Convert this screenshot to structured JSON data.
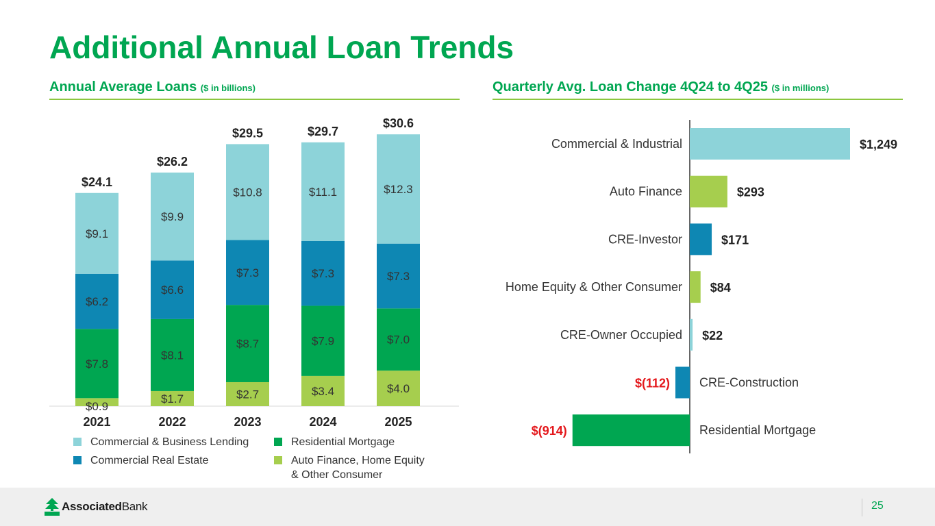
{
  "title": "Additional Annual Loan Trends",
  "left_panel": {
    "heading": "Annual Average Loans",
    "unit": "($ in billions)"
  },
  "right_panel": {
    "heading": "Quarterly Avg. Loan Change 4Q24 to 4Q25",
    "unit": "($ in millions)"
  },
  "colors": {
    "brand_green": "#00A651",
    "light_green": "#8CC63F",
    "commercial_business": "#8DD3D9",
    "commercial_real_estate": "#0E87B3",
    "residential_mortgage": "#00A651",
    "auto_consumer": "#A6CE4E",
    "negative_red": "#E4181C"
  },
  "chart_data": [
    {
      "type": "bar",
      "stacked": true,
      "title": "Annual Average Loans ($ in billions)",
      "categories": [
        "2021",
        "2022",
        "2023",
        "2024",
        "2025"
      ],
      "totals": [
        24.1,
        26.2,
        29.5,
        29.7,
        30.6
      ],
      "total_labels": [
        "$24.1",
        "$26.2",
        "$29.5",
        "$29.7",
        "$30.6"
      ],
      "series": [
        {
          "name": "Auto Finance, Home Equity & Other Consumer",
          "color_key": "auto_consumer",
          "values": [
            0.9,
            1.7,
            2.7,
            3.4,
            4.0
          ],
          "labels": [
            "$0.9",
            "$1.7",
            "$2.7",
            "$3.4",
            "$4.0"
          ]
        },
        {
          "name": "Residential Mortgage",
          "color_key": "residential_mortgage",
          "values": [
            7.8,
            8.1,
            8.7,
            7.9,
            7.0
          ],
          "labels": [
            "$7.8",
            "$8.1",
            "$8.7",
            "$7.9",
            "$7.0"
          ]
        },
        {
          "name": "Commercial Real Estate",
          "color_key": "commercial_real_estate",
          "values": [
            6.2,
            6.6,
            7.3,
            7.3,
            7.3
          ],
          "labels": [
            "$6.2",
            "$6.6",
            "$7.3",
            "$7.3",
            "$7.3"
          ]
        },
        {
          "name": "Commercial & Business Lending",
          "color_key": "commercial_business",
          "values": [
            9.1,
            9.9,
            10.8,
            11.1,
            12.3
          ],
          "labels": [
            "$9.1",
            "$9.9",
            "$10.8",
            "$11.1",
            "$12.3"
          ]
        }
      ],
      "ylim": [
        0,
        32
      ],
      "legend": "bottom"
    },
    {
      "type": "bar",
      "orientation": "horizontal",
      "title": "Quarterly Avg. Loan Change 4Q24 to 4Q25 ($ in millions)",
      "categories": [
        "Commercial & Industrial",
        "Auto Finance",
        "CRE-Investor",
        "Home Equity & Other Consumer",
        "CRE-Owner Occupied",
        "CRE-Construction",
        "Residential Mortgage"
      ],
      "values": [
        1249,
        293,
        171,
        84,
        22,
        -112,
        -914
      ],
      "labels": [
        "$1,249",
        "$293",
        "$171",
        "$84",
        "$22",
        "$(112)",
        "$(914)"
      ],
      "color_keys": [
        "commercial_business",
        "auto_consumer",
        "commercial_real_estate",
        "auto_consumer",
        "commercial_business",
        "commercial_real_estate",
        "residential_mortgage"
      ]
    }
  ],
  "legend_items": [
    "Commercial & Business Lending",
    "Commercial Real Estate",
    "Residential Mortgage",
    "Auto Finance, Home Equity",
    "& Other Consumer"
  ],
  "footer": {
    "logo_bold": "Associated",
    "logo_regular": "Bank",
    "page_number": "25"
  }
}
